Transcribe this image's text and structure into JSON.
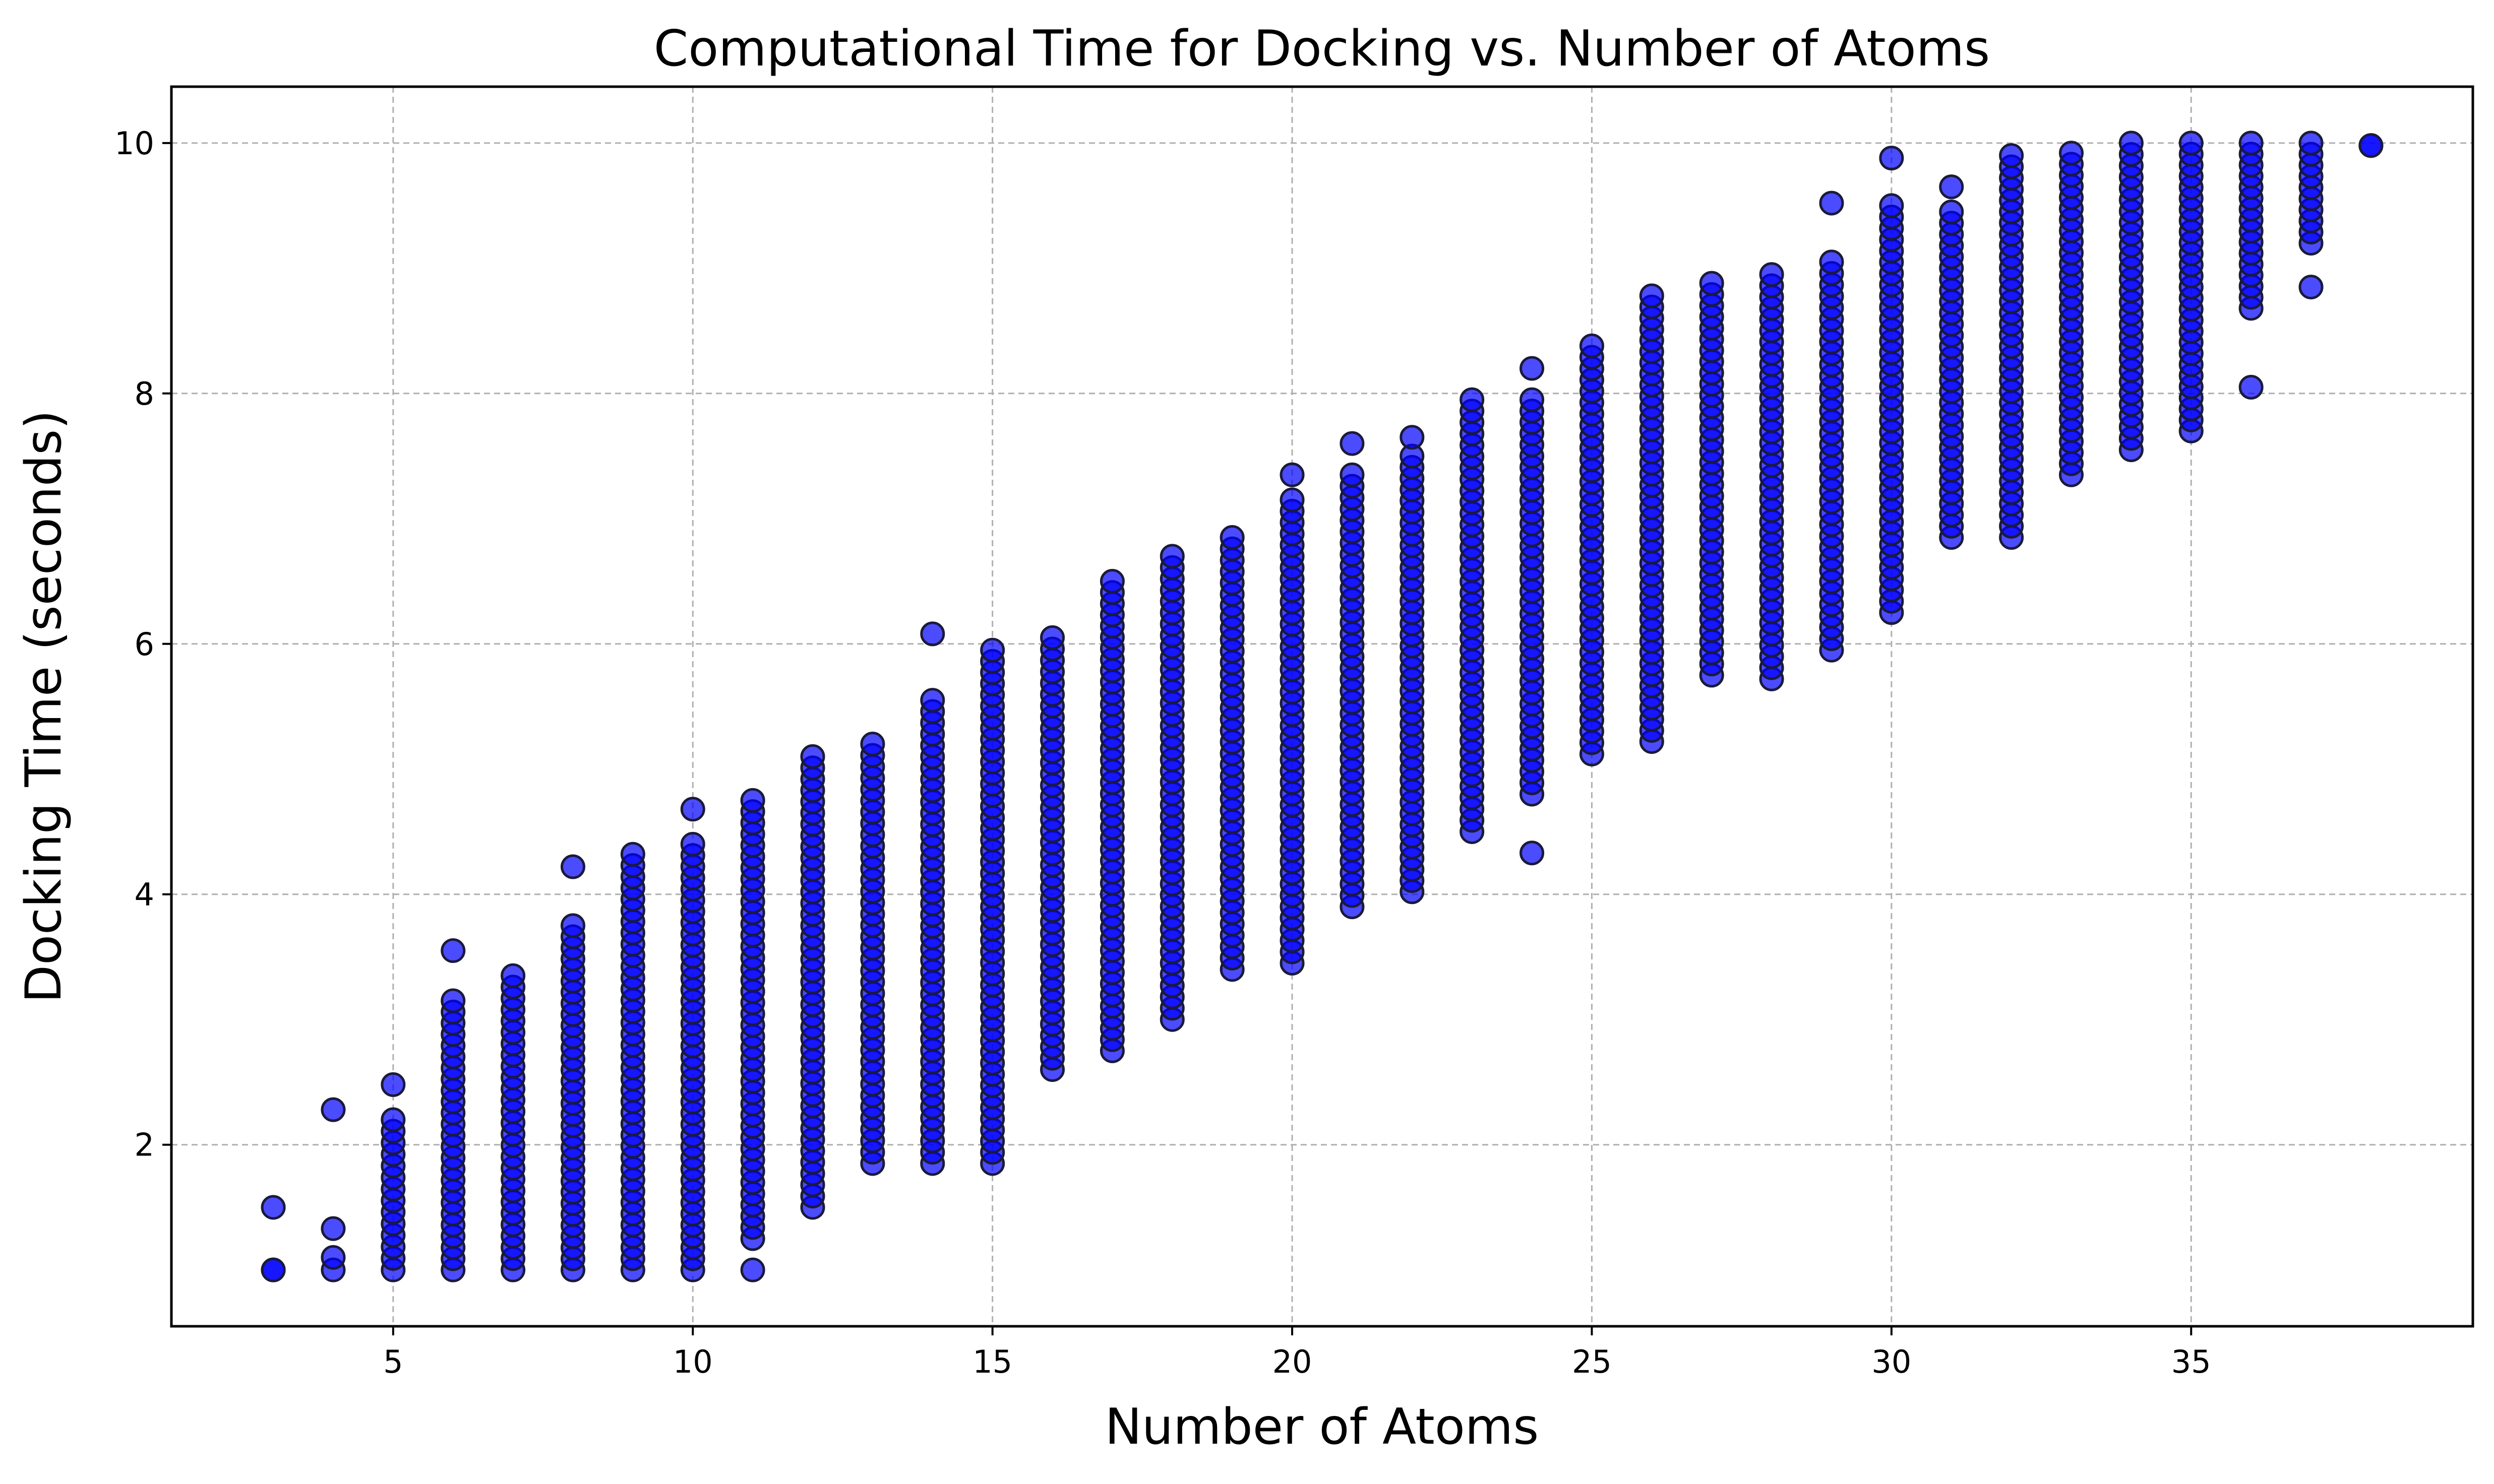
{
  "chart_data": {
    "type": "scatter",
    "title": "Computational Time for Docking vs. Number of Atoms",
    "xlabel": "Number of Atoms",
    "ylabel": "Docking Time (seconds)",
    "xlim": [
      1.3,
      39.7
    ],
    "ylim": [
      0.55,
      10.45
    ],
    "xticks": [
      5,
      10,
      15,
      20,
      25,
      30,
      35
    ],
    "yticks": [
      2,
      4,
      6,
      8,
      10
    ],
    "grid": true,
    "marker_color": "#0000ff",
    "marker_edge_color": "#1a1a3a",
    "marker_opacity": 0.7,
    "columns": [
      {
        "x": 3,
        "y_min": 1.0,
        "y_max": 1.0,
        "extra": [
          1.5
        ]
      },
      {
        "x": 4,
        "y_min": 1.0,
        "y_max": 1.1,
        "extra": [
          1.33,
          2.28
        ]
      },
      {
        "x": 5,
        "y_min": 1.0,
        "y_max": 2.2,
        "extra": [
          2.48
        ]
      },
      {
        "x": 6,
        "y_min": 1.0,
        "y_max": 3.15,
        "extra": [
          3.55
        ]
      },
      {
        "x": 7,
        "y_min": 1.0,
        "y_max": 3.35,
        "extra": []
      },
      {
        "x": 8,
        "y_min": 1.0,
        "y_max": 3.75,
        "extra": [
          4.22
        ]
      },
      {
        "x": 9,
        "y_min": 1.0,
        "y_max": 4.32,
        "extra": []
      },
      {
        "x": 10,
        "y_min": 1.0,
        "y_max": 4.4,
        "extra": [
          4.68
        ]
      },
      {
        "x": 11,
        "y_min": 1.25,
        "y_max": 4.75,
        "extra": [
          1.0
        ]
      },
      {
        "x": 12,
        "y_min": 1.5,
        "y_max": 5.1,
        "extra": []
      },
      {
        "x": 13,
        "y_min": 1.85,
        "y_max": 5.2,
        "extra": []
      },
      {
        "x": 14,
        "y_min": 1.85,
        "y_max": 5.55,
        "extra": [
          6.08
        ]
      },
      {
        "x": 15,
        "y_min": 1.85,
        "y_max": 5.95,
        "extra": []
      },
      {
        "x": 16,
        "y_min": 2.6,
        "y_max": 6.05,
        "extra": []
      },
      {
        "x": 17,
        "y_min": 2.75,
        "y_max": 6.5,
        "extra": []
      },
      {
        "x": 18,
        "y_min": 3.0,
        "y_max": 6.7,
        "extra": []
      },
      {
        "x": 19,
        "y_min": 3.4,
        "y_max": 6.85,
        "extra": []
      },
      {
        "x": 20,
        "y_min": 3.45,
        "y_max": 7.15,
        "extra": [
          7.35
        ]
      },
      {
        "x": 21,
        "y_min": 3.9,
        "y_max": 7.35,
        "extra": [
          7.6
        ]
      },
      {
        "x": 22,
        "y_min": 4.02,
        "y_max": 7.5,
        "extra": [
          7.65
        ]
      },
      {
        "x": 23,
        "y_min": 4.5,
        "y_max": 7.95,
        "extra": []
      },
      {
        "x": 24,
        "y_min": 4.8,
        "y_max": 7.95,
        "extra": [
          4.33,
          8.2
        ]
      },
      {
        "x": 25,
        "y_min": 5.12,
        "y_max": 8.38,
        "extra": []
      },
      {
        "x": 26,
        "y_min": 5.22,
        "y_max": 8.78,
        "extra": []
      },
      {
        "x": 27,
        "y_min": 5.75,
        "y_max": 8.88,
        "extra": []
      },
      {
        "x": 28,
        "y_min": 5.72,
        "y_max": 8.95,
        "extra": []
      },
      {
        "x": 29,
        "y_min": 5.95,
        "y_max": 9.05,
        "extra": [
          9.52
        ]
      },
      {
        "x": 30,
        "y_min": 6.25,
        "y_max": 9.5,
        "extra": [
          9.88
        ]
      },
      {
        "x": 31,
        "y_min": 6.85,
        "y_max": 9.45,
        "extra": [
          9.65
        ]
      },
      {
        "x": 32,
        "y_min": 6.85,
        "y_max": 9.9,
        "extra": []
      },
      {
        "x": 33,
        "y_min": 7.35,
        "y_max": 9.92,
        "extra": []
      },
      {
        "x": 34,
        "y_min": 7.55,
        "y_max": 10.0,
        "extra": []
      },
      {
        "x": 35,
        "y_min": 7.7,
        "y_max": 10.0,
        "extra": []
      },
      {
        "x": 36,
        "y_min": 8.68,
        "y_max": 10.0,
        "extra": [
          8.05
        ]
      },
      {
        "x": 37,
        "y_min": 9.2,
        "y_max": 10.0,
        "extra": [
          8.85
        ]
      },
      {
        "x": 38,
        "y_min": 9.98,
        "y_max": 9.98,
        "extra": []
      }
    ]
  }
}
